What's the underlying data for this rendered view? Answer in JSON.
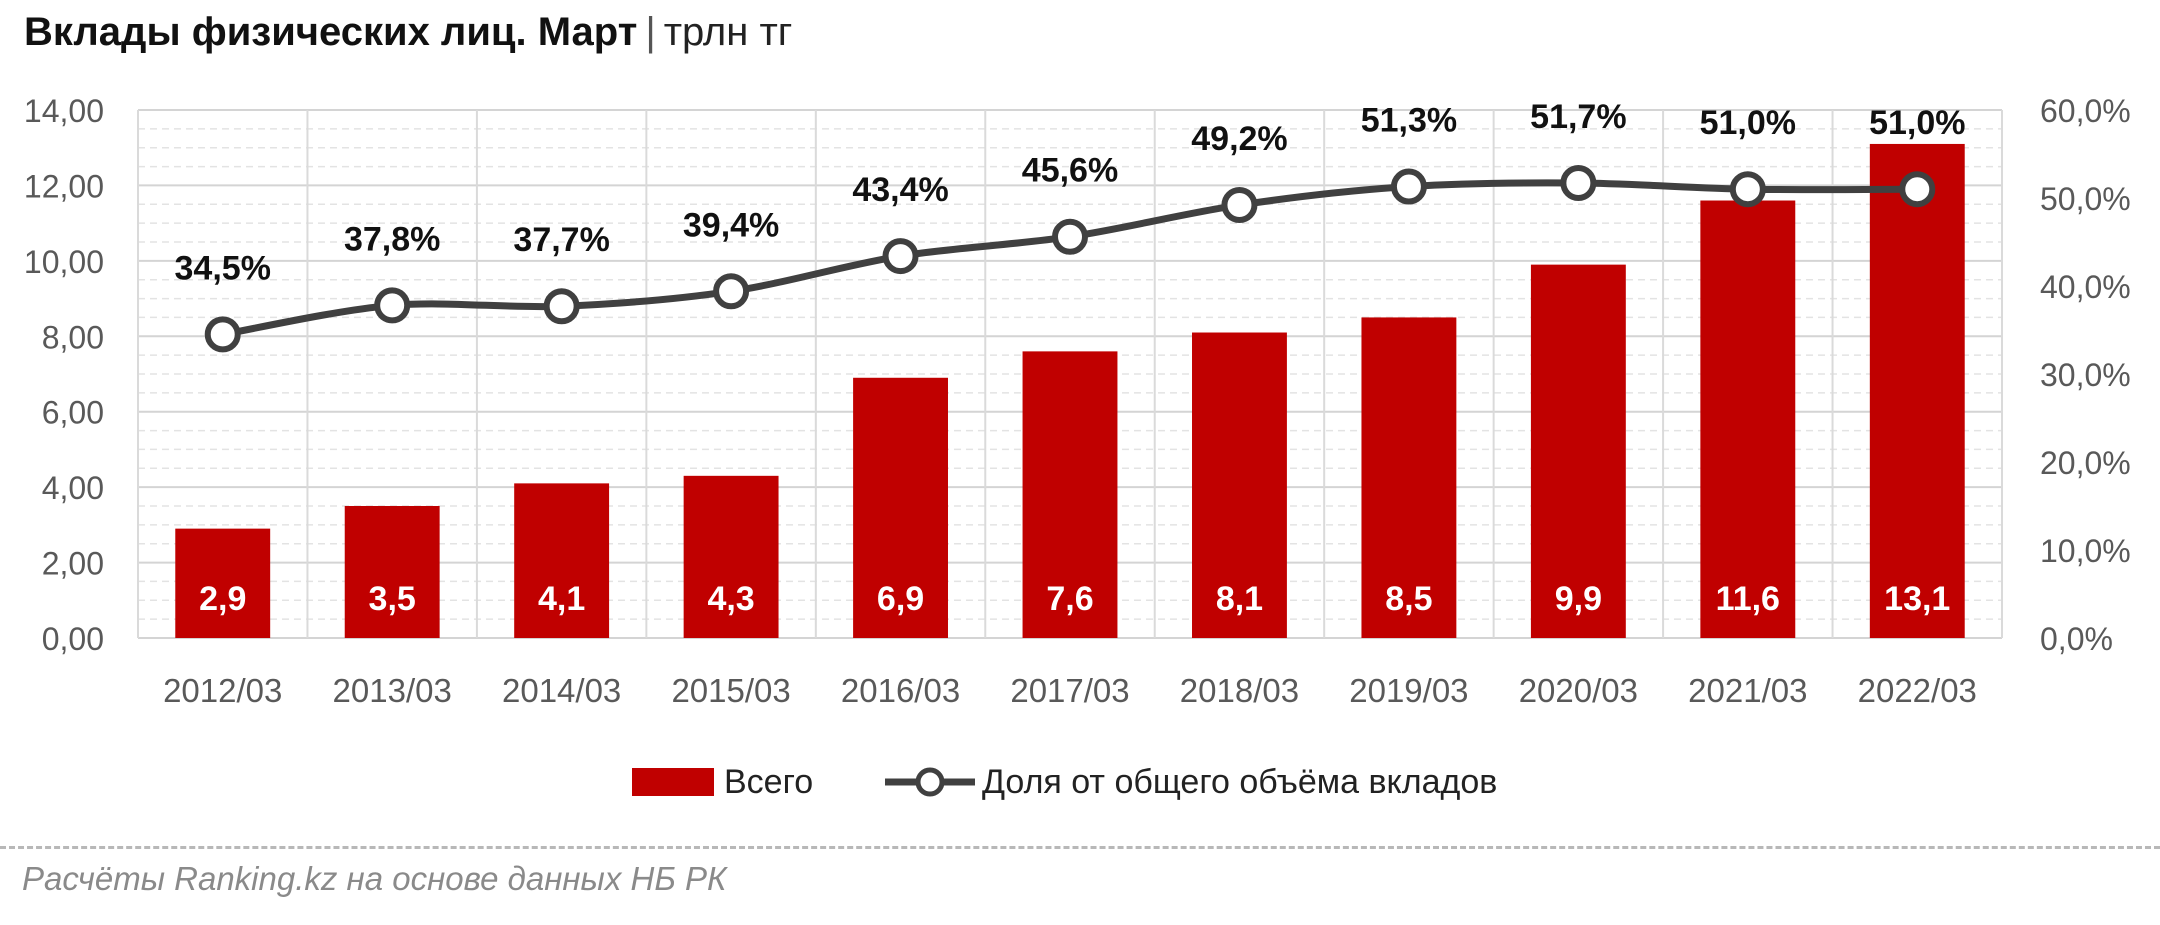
{
  "title": {
    "main": "Вклады физических лиц. Март",
    "separator": "|",
    "unit": "трлн тг"
  },
  "source": "Расчёты Ranking.kz на основе данных НБ РК",
  "colors": {
    "bar": "#c00000",
    "line": "#404040",
    "marker_fill": "#ffffff",
    "grid": "#d9d9d9",
    "axis_text": "#595959"
  },
  "chart_data": {
    "type": "bar",
    "categories": [
      "2012/03",
      "2013/03",
      "2014/03",
      "2015/03",
      "2016/03",
      "2017/03",
      "2018/03",
      "2019/03",
      "2020/03",
      "2021/03",
      "2022/03"
    ],
    "series": [
      {
        "name": "Всего",
        "type": "bar",
        "axis": "left",
        "values": [
          2.9,
          3.5,
          4.1,
          4.3,
          6.9,
          7.6,
          8.1,
          8.5,
          9.9,
          11.6,
          13.1
        ],
        "labels": [
          "2,9",
          "3,5",
          "4,1",
          "4,3",
          "6,9",
          "7,6",
          "8,1",
          "8,5",
          "9,9",
          "11,6",
          "13,1"
        ]
      },
      {
        "name": "Доля от общего объёма вкладов",
        "type": "line",
        "axis": "right",
        "values": [
          34.5,
          37.8,
          37.7,
          39.4,
          43.4,
          45.6,
          49.2,
          51.3,
          51.7,
          51.0,
          51.0
        ],
        "labels": [
          "34,5%",
          "37,8%",
          "37,7%",
          "39,4%",
          "43,4%",
          "45,6%",
          "49,2%",
          "51,3%",
          "51,7%",
          "51,0%",
          "51,0%"
        ]
      }
    ],
    "y_left": {
      "ylim": [
        0,
        14
      ],
      "ticks": [
        0,
        2,
        4,
        6,
        8,
        10,
        12,
        14
      ],
      "tick_labels": [
        "0,00",
        "2,00",
        "4,00",
        "6,00",
        "8,00",
        "10,00",
        "12,00",
        "14,00"
      ]
    },
    "y_right": {
      "ylim": [
        0,
        60
      ],
      "ticks": [
        0,
        10,
        20,
        30,
        40,
        50,
        60
      ],
      "tick_labels": [
        "0,0%",
        "10,0%",
        "20,0%",
        "30,0%",
        "40,0%",
        "50,0%",
        "60,0%"
      ]
    },
    "xlabel": "",
    "ylabel": "",
    "grid": true,
    "legend": {
      "position": "bottom"
    }
  }
}
